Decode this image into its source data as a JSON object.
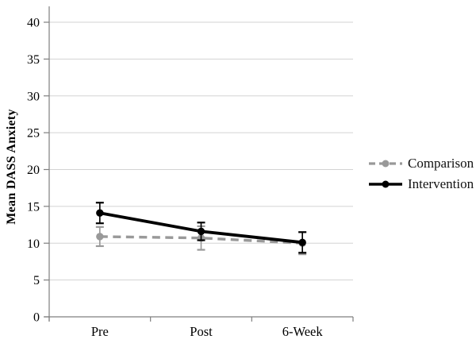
{
  "chart_data": {
    "type": "line",
    "title": "",
    "ylabel": "Mean DASS Anxiety",
    "xlabel": "",
    "categories": [
      "Pre",
      "Post",
      "6-Week"
    ],
    "y_ticks": [
      0,
      5,
      10,
      15,
      20,
      25,
      30,
      35,
      40
    ],
    "ylim": [
      0,
      40
    ],
    "grid": true,
    "legend_position": "right",
    "series": [
      {
        "name": "Comparison",
        "style": "dashed",
        "marker": "circle",
        "color": "#999999",
        "values": [
          10.9,
          10.7,
          10.0
        ],
        "errors": [
          1.3,
          1.6,
          1.5
        ]
      },
      {
        "name": "Intervention",
        "style": "solid",
        "marker": "circle",
        "color": "#000000",
        "values": [
          14.1,
          11.6,
          10.1
        ],
        "errors": [
          1.4,
          1.2,
          1.4
        ]
      }
    ],
    "colors": {
      "gridline": "#d3d3d3",
      "axis": "#7f7f7f",
      "text": "#000000",
      "background": "#ffffff"
    }
  }
}
